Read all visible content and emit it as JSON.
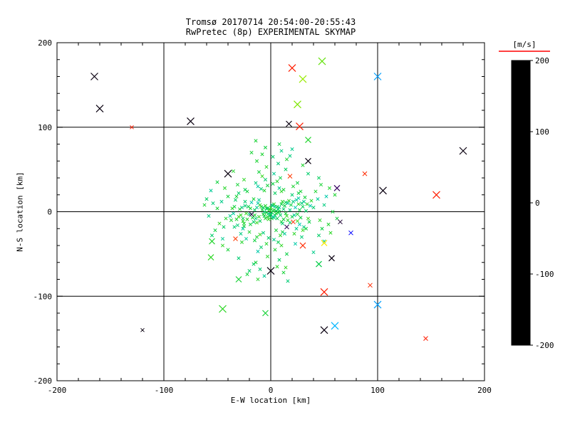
{
  "header": {
    "title_line1": "Tromsø 20170714 20:54:00-20:55:43",
    "title_line2": "RwPretec (8p) EXPERIMENTAL SKYMAP"
  },
  "chart_data": {
    "type": "scatter",
    "title": "Tromsø 20170714 20:54:00-20:55:43 / RwPretec (8p) EXPERIMENTAL SKYMAP",
    "xlabel": "E-W location [km]",
    "ylabel": "N-S location [km]",
    "xlim": [
      -200,
      200
    ],
    "ylim": [
      -200,
      200
    ],
    "xticks": [
      -200,
      -100,
      0,
      100,
      200
    ],
    "yticks": [
      -200,
      -100,
      0,
      100,
      200
    ],
    "grid": true,
    "marker": "x",
    "colorbar": {
      "label": "[m/s]",
      "min": -200,
      "max": 200,
      "ticks": [
        200,
        100,
        0,
        -100,
        -200
      ],
      "accent_rule_color": "#ff0000"
    },
    "colormap": [
      {
        "v": -200,
        "c": "#000000"
      },
      {
        "v": -150,
        "c": "#5a00a0"
      },
      {
        "v": -100,
        "c": "#0000ff"
      },
      {
        "v": -50,
        "c": "#00c8ff"
      },
      {
        "v": 0,
        "c": "#00cd46"
      },
      {
        "v": 50,
        "c": "#7ee600"
      },
      {
        "v": 100,
        "c": "#ffff00"
      },
      {
        "v": 150,
        "c": "#ff8c00"
      },
      {
        "v": 200,
        "c": "#ff0000"
      }
    ],
    "points": [
      [
        1,
        -1,
        8
      ],
      [
        -1,
        3,
        -6
      ],
      [
        3,
        2,
        14
      ],
      [
        -2,
        -2,
        -18
      ],
      [
        0,
        5,
        22
      ],
      [
        4,
        -4,
        -9
      ],
      [
        -4,
        4,
        5
      ],
      [
        2,
        7,
        -13
      ],
      [
        -3,
        -6,
        17
      ],
      [
        5,
        1,
        -4
      ],
      [
        1,
        -8,
        11
      ],
      [
        -6,
        0,
        -16
      ],
      [
        6,
        6,
        9
      ],
      [
        0,
        -3,
        -21
      ],
      [
        -5,
        -8,
        13
      ],
      [
        7,
        -1,
        3
      ],
      [
        -7,
        5,
        -11
      ],
      [
        3,
        9,
        19
      ],
      [
        -1,
        -5,
        -7
      ],
      [
        8,
        0,
        6
      ],
      [
        2,
        1,
        5
      ],
      [
        -3,
        4,
        -8
      ],
      [
        5,
        -2,
        12
      ],
      [
        -6,
        -5,
        0
      ],
      [
        1,
        8,
        -15
      ],
      [
        -2,
        -9,
        20
      ],
      [
        7,
        3,
        -5
      ],
      [
        -8,
        2,
        8
      ],
      [
        4,
        6,
        -20
      ],
      [
        -5,
        7,
        15
      ],
      [
        0,
        -4,
        3
      ],
      [
        3,
        -7,
        -12
      ],
      [
        -1,
        2,
        25
      ],
      [
        6,
        -8,
        -3
      ],
      [
        -7,
        -3,
        10
      ],
      [
        8,
        5,
        -18
      ],
      [
        -4,
        -1,
        6
      ],
      [
        2,
        -6,
        -25
      ],
      [
        -9,
        6,
        14
      ],
      [
        9,
        -4,
        -7
      ],
      [
        12,
        3,
        -10
      ],
      [
        -11,
        -6,
        18
      ],
      [
        10,
        9,
        4
      ],
      [
        -13,
        5,
        -22
      ],
      [
        14,
        -2,
        9
      ],
      [
        -10,
        -11,
        -4
      ],
      [
        11,
        12,
        16
      ],
      [
        -14,
        -8,
        -14
      ],
      [
        13,
        7,
        2
      ],
      [
        -12,
        10,
        -28
      ],
      [
        15,
        -5,
        22
      ],
      [
        -15,
        2,
        -6
      ],
      [
        10,
        -12,
        11
      ],
      [
        -11,
        14,
        -19
      ],
      [
        12,
        -9,
        7
      ],
      [
        -13,
        -13,
        24
      ],
      [
        14,
        11,
        -2
      ],
      [
        -15,
        -4,
        13
      ],
      [
        11,
        -14,
        -11
      ],
      [
        -10,
        8,
        19
      ],
      [
        18,
        2,
        -16
      ],
      [
        -17,
        -7,
        8
      ],
      [
        16,
        10,
        -24
      ],
      [
        -19,
        4,
        12
      ],
      [
        20,
        -6,
        5
      ],
      [
        -16,
        -12,
        -9
      ],
      [
        17,
        13,
        21
      ],
      [
        -20,
        -3,
        -13
      ],
      [
        19,
        8,
        3
      ],
      [
        -18,
        11,
        -27
      ],
      [
        16,
        -10,
        17
      ],
      [
        -21,
        6,
        -1
      ],
      [
        22,
        -4,
        -21
      ],
      [
        -16,
        15,
        10
      ],
      [
        18,
        -13,
        -8
      ],
      [
        -22,
        -9,
        15
      ],
      [
        21,
        12,
        -15
      ],
      [
        -19,
        -15,
        6
      ],
      [
        23,
        5,
        -29
      ],
      [
        -23,
        -2,
        23
      ],
      [
        25,
        -3,
        9
      ],
      [
        -24,
        7,
        -12
      ],
      [
        26,
        9,
        18
      ],
      [
        -26,
        -8,
        -5
      ],
      [
        24,
        14,
        -23
      ],
      [
        -25,
        -14,
        14
      ],
      [
        27,
        2,
        1
      ],
      [
        -27,
        5,
        -17
      ],
      [
        25,
        -11,
        26
      ],
      [
        -24,
        12,
        -10
      ],
      [
        28,
        -7,
        4
      ],
      [
        -28,
        -4,
        20
      ],
      [
        26,
        16,
        -26
      ],
      [
        -25,
        -17,
        7
      ],
      [
        29,
        10,
        -14
      ],
      [
        -29,
        3,
        11
      ],
      [
        27,
        -15,
        -30
      ],
      [
        -26,
        -11,
        16
      ],
      [
        30,
        6,
        -4
      ],
      [
        -30,
        -6,
        28
      ],
      [
        33,
        1,
        -9
      ],
      [
        -32,
        -9,
        13
      ],
      [
        31,
        12,
        -20
      ],
      [
        -34,
        6,
        5
      ],
      [
        35,
        -8,
        22
      ],
      [
        -31,
        -16,
        -13
      ],
      [
        32,
        17,
        8
      ],
      [
        -35,
        -2,
        -24
      ],
      [
        34,
        9,
        15
      ],
      [
        -33,
        14,
        -7
      ],
      [
        36,
        -12,
        2
      ],
      [
        -36,
        4,
        19
      ],
      [
        31,
        -18,
        -16
      ],
      [
        -32,
        18,
        9
      ],
      [
        37,
        7,
        -28
      ],
      [
        -37,
        -10,
        12
      ],
      [
        33,
        -20,
        6
      ],
      [
        -34,
        -18,
        -11
      ],
      [
        38,
        13,
        17
      ],
      [
        -38,
        -5,
        -19
      ],
      [
        4,
        22,
        -6
      ],
      [
        -6,
        25,
        14
      ],
      [
        8,
        28,
        -18
      ],
      [
        -3,
        31,
        7
      ],
      [
        10,
        24,
        21
      ],
      [
        -9,
        27,
        -12
      ],
      [
        2,
        33,
        4
      ],
      [
        -12,
        30,
        -25
      ],
      [
        6,
        36,
        16
      ],
      [
        -5,
        38,
        -9
      ],
      [
        12,
        26,
        10
      ],
      [
        -14,
        34,
        -15
      ],
      [
        9,
        40,
        3
      ],
      [
        -8,
        42,
        23
      ],
      [
        3,
        45,
        -20
      ],
      [
        -11,
        47,
        8
      ],
      [
        14,
        50,
        -5
      ],
      [
        -4,
        53,
        18
      ],
      [
        7,
        57,
        -13
      ],
      [
        -13,
        60,
        12
      ],
      [
        5,
        -22,
        9
      ],
      [
        -7,
        -25,
        -14
      ],
      [
        9,
        -28,
        19
      ],
      [
        -2,
        -31,
        -8
      ],
      [
        11,
        -24,
        5
      ],
      [
        -10,
        -27,
        24
      ],
      [
        3,
        -33,
        -17
      ],
      [
        -13,
        -30,
        11
      ],
      [
        7,
        -36,
        -3
      ],
      [
        -4,
        -38,
        15
      ],
      [
        13,
        -26,
        -22
      ],
      [
        -15,
        -34,
        6
      ],
      [
        10,
        -40,
        20
      ],
      [
        -9,
        -42,
        -10
      ],
      [
        4,
        -45,
        13
      ],
      [
        -12,
        -47,
        -27
      ],
      [
        15,
        -50,
        2
      ],
      [
        -3,
        -53,
        17
      ],
      [
        8,
        -57,
        -6
      ],
      [
        -14,
        -60,
        10
      ],
      [
        20,
        20,
        -11
      ],
      [
        -22,
        24,
        7
      ],
      [
        24,
        -20,
        -19
      ],
      [
        -20,
        -24,
        14
      ],
      [
        26,
        22,
        3
      ],
      [
        -26,
        -20,
        -23
      ],
      [
        22,
        -26,
        18
      ],
      [
        -24,
        26,
        -2
      ],
      [
        28,
        24,
        10
      ],
      [
        -28,
        -26,
        -16
      ],
      [
        30,
        -22,
        25
      ],
      [
        -30,
        22,
        -8
      ],
      [
        21,
        30,
        12
      ],
      [
        -23,
        -32,
        -21
      ],
      [
        25,
        34,
        5
      ],
      [
        -27,
        -36,
        16
      ],
      [
        29,
        -30,
        -13
      ],
      [
        -31,
        32,
        9
      ],
      [
        23,
        -38,
        -26
      ],
      [
        -25,
        38,
        20
      ],
      [
        40,
        5,
        -10
      ],
      [
        -42,
        -8,
        15
      ],
      [
        44,
        15,
        -22
      ],
      [
        -40,
        18,
        8
      ],
      [
        46,
        -10,
        19
      ],
      [
        -44,
        -18,
        -6
      ],
      [
        42,
        24,
        13
      ],
      [
        -46,
        12,
        -18
      ],
      [
        48,
        -20,
        4
      ],
      [
        -48,
        -14,
        22
      ],
      [
        50,
        8,
        -15
      ],
      [
        -50,
        4,
        10
      ],
      [
        45,
        -28,
        -9
      ],
      [
        -43,
        28,
        17
      ],
      [
        52,
        18,
        -27
      ],
      [
        -52,
        -22,
        5
      ],
      [
        47,
        32,
        11
      ],
      [
        -45,
        -32,
        -20
      ],
      [
        54,
        -15,
        14
      ],
      [
        -54,
        10,
        -12
      ],
      [
        2,
        65,
        -8
      ],
      [
        -8,
        68,
        12
      ],
      [
        10,
        72,
        -16
      ],
      [
        -5,
        76,
        6
      ],
      [
        6,
        -65,
        18
      ],
      [
        -10,
        -68,
        -11
      ],
      [
        12,
        -72,
        9
      ],
      [
        -6,
        -76,
        -21
      ],
      [
        15,
        62,
        14
      ],
      [
        -16,
        -62,
        -5
      ],
      [
        18,
        66,
        -14
      ],
      [
        -18,
        70,
        10
      ],
      [
        14,
        -66,
        21
      ],
      [
        -20,
        -70,
        -9
      ],
      [
        8,
        80,
        5
      ],
      [
        -12,
        -80,
        16
      ],
      [
        20,
        74,
        -19
      ],
      [
        -22,
        -74,
        7
      ],
      [
        16,
        -82,
        -13
      ],
      [
        -14,
        84,
        11
      ],
      [
        58,
        0,
        8
      ],
      [
        -58,
        -5,
        -15
      ],
      [
        60,
        20,
        13
      ],
      [
        -60,
        15,
        -7
      ],
      [
        56,
        -25,
        19
      ],
      [
        -56,
        25,
        -22
      ],
      [
        62,
        -8,
        5
      ],
      [
        -62,
        8,
        12
      ],
      [
        35,
        45,
        -10
      ],
      [
        -35,
        48,
        16
      ],
      [
        40,
        -48,
        -18
      ],
      [
        -40,
        -45,
        9
      ],
      [
        30,
        55,
        14
      ],
      [
        -30,
        -55,
        -12
      ],
      [
        45,
        40,
        -5
      ],
      [
        -45,
        -40,
        21
      ],
      [
        50,
        -35,
        -24
      ],
      [
        -50,
        35,
        6
      ],
      [
        55,
        28,
        15
      ],
      [
        -55,
        -28,
        -9
      ],
      [
        -165,
        160,
        -195,
        5
      ],
      [
        -160,
        122,
        -195,
        5
      ],
      [
        -130,
        100,
        190,
        2.5
      ],
      [
        -75,
        107,
        -195,
        5
      ],
      [
        20,
        170,
        190,
        5
      ],
      [
        48,
        178,
        40,
        5
      ],
      [
        30,
        157,
        60,
        5
      ],
      [
        25,
        127,
        50,
        5
      ],
      [
        27,
        101,
        190,
        5
      ],
      [
        17,
        104,
        -195,
        4
      ],
      [
        100,
        160,
        -60,
        5
      ],
      [
        180,
        72,
        -195,
        5
      ],
      [
        155,
        20,
        190,
        5
      ],
      [
        105,
        25,
        -195,
        5
      ],
      [
        88,
        45,
        185,
        3
      ],
      [
        -40,
        45,
        -195,
        5
      ],
      [
        35,
        60,
        -195,
        4
      ],
      [
        62,
        28,
        -170,
        4
      ],
      [
        50,
        -37,
        110,
        4
      ],
      [
        57,
        -55,
        -195,
        4
      ],
      [
        50,
        -95,
        190,
        5
      ],
      [
        93,
        -87,
        185,
        3
      ],
      [
        100,
        -110,
        -60,
        5
      ],
      [
        -45,
        -115,
        20,
        5
      ],
      [
        -5,
        -120,
        10,
        4
      ],
      [
        60,
        -135,
        -55,
        5
      ],
      [
        50,
        -140,
        -195,
        5
      ],
      [
        145,
        -150,
        190,
        3
      ],
      [
        -120,
        -140,
        -195,
        2.5
      ],
      [
        30,
        -40,
        185,
        4
      ],
      [
        45,
        -62,
        0,
        4
      ],
      [
        75,
        -25,
        -100,
        3
      ],
      [
        35,
        85,
        15,
        4
      ],
      [
        -30,
        -80,
        10,
        4
      ],
      [
        65,
        -12,
        -185,
        3
      ],
      [
        0,
        -70,
        -195,
        5
      ],
      [
        -18,
        -3,
        -180,
        3
      ],
      [
        15,
        -18,
        -175,
        3
      ],
      [
        21,
        -12,
        185,
        3
      ],
      [
        -55,
        -35,
        15,
        4
      ],
      [
        -56,
        -54,
        20,
        4
      ],
      [
        -33,
        -32,
        180,
        3
      ],
      [
        18,
        42,
        180,
        3
      ]
    ]
  },
  "colors": {
    "background": "#ffffff",
    "axis": "#000000"
  }
}
